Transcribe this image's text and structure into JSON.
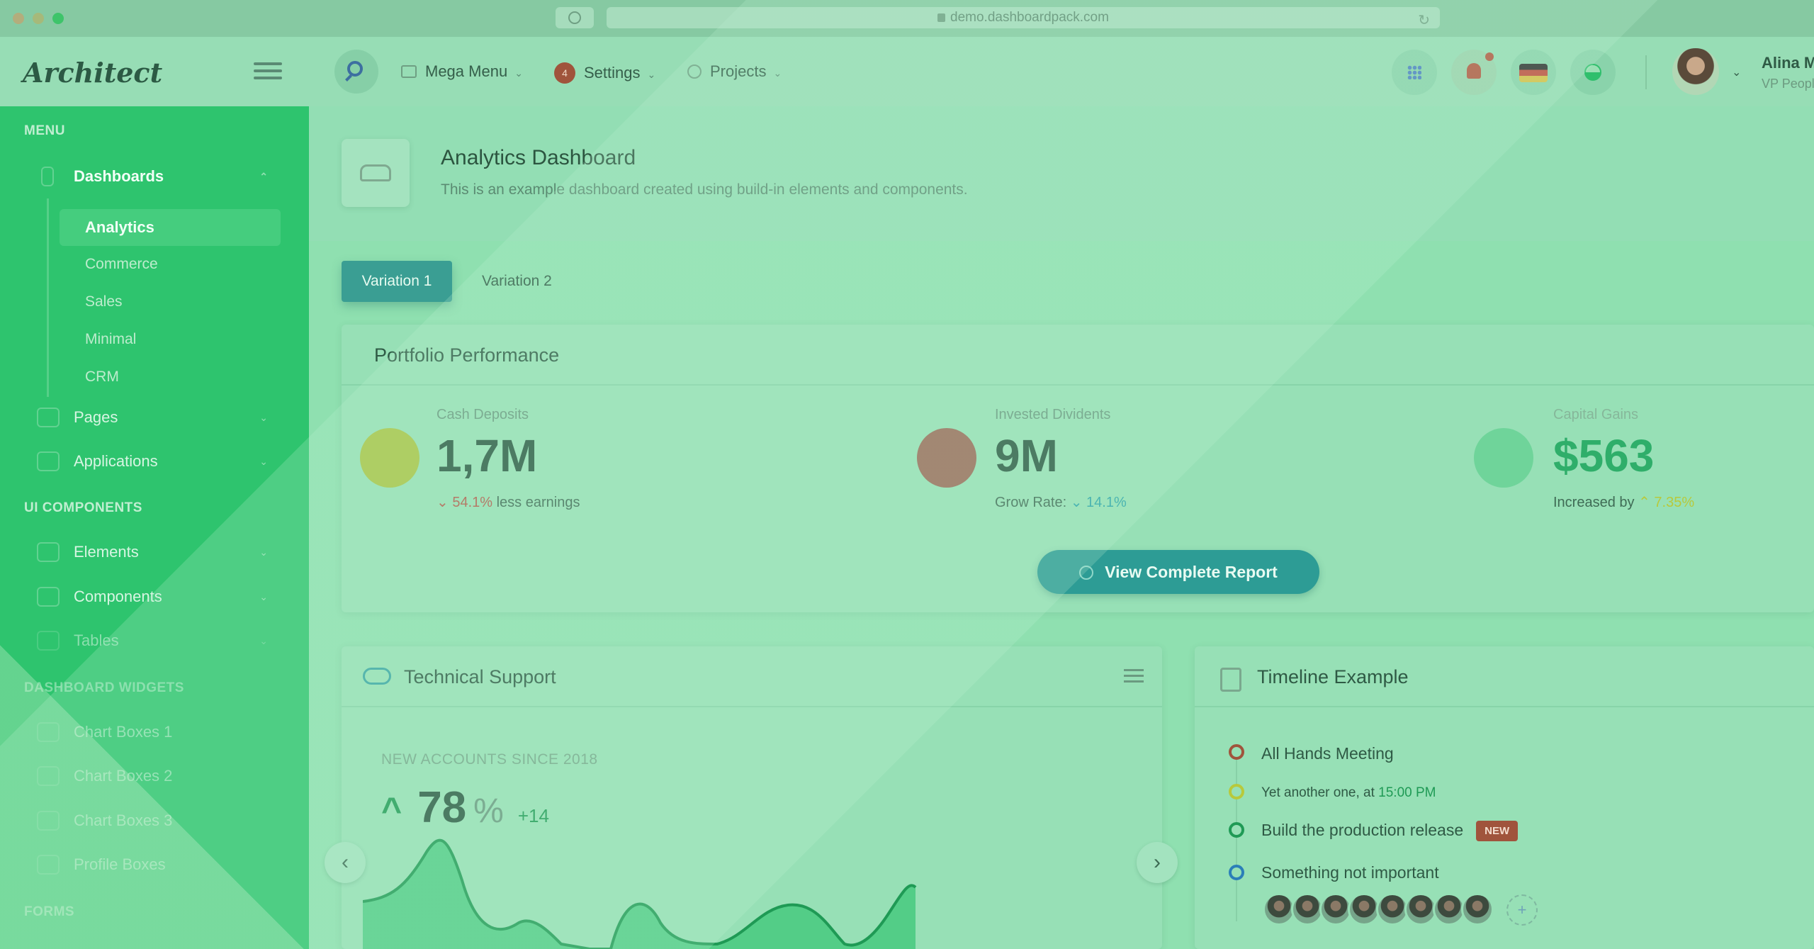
{
  "browser": {
    "url": "demo.dashboardpack.com"
  },
  "header": {
    "brand": "Architect",
    "nav": [
      {
        "label": "Mega Menu"
      },
      {
        "label": "Settings",
        "badge": "4"
      },
      {
        "label": "Projects"
      }
    ],
    "user": {
      "name": "Alina Mclourd",
      "role": "VP People Manager"
    },
    "colors": {
      "accent": "#2d9c95",
      "sidebar": "#2ec46e",
      "badge": "#a0543c"
    }
  },
  "sidebar": {
    "sections": [
      {
        "heading": "MENU"
      },
      {
        "heading": "UI COMPONENTS"
      },
      {
        "heading": "DASHBOARD WIDGETS"
      },
      {
        "heading": "FORMS"
      }
    ],
    "dashboards": {
      "label": "Dashboards",
      "children": [
        "Analytics",
        "Commerce",
        "Sales",
        "Minimal",
        "CRM"
      ]
    },
    "items": {
      "pages": "Pages",
      "applications": "Applications",
      "elements": "Elements",
      "components": "Components",
      "tables": "Tables",
      "chart_boxes_1": "Chart Boxes 1",
      "chart_boxes_2": "Chart Boxes 2",
      "chart_boxes_3": "Chart Boxes 3",
      "profile_boxes": "Profile Boxes"
    }
  },
  "page": {
    "title": "Analytics Dashboard",
    "subtitle": "This is an example dashboard created using build-in elements and components.",
    "tabs": [
      "Variation 1",
      "Variation 2"
    ]
  },
  "portfolio": {
    "title": "Portfolio Performance",
    "stats": [
      {
        "label": "Cash Deposits",
        "value": "1,7M",
        "arrow": "⌄",
        "change": "54.1%",
        "suffix": "less earnings"
      },
      {
        "label": "Invested Dividents",
        "value": "9M",
        "prefix": "Grow Rate:",
        "arrow": "⌄",
        "change": "14.1%"
      },
      {
        "label": "Capital Gains",
        "value": "$563",
        "prefix": "Increased by",
        "arrow": "⌃",
        "change": "7.35%"
      }
    ],
    "button": "View Complete Report"
  },
  "support": {
    "title": "Technical Support",
    "accounts_label": "NEW ACCOUNTS SINCE 2018",
    "accounts_value": "78",
    "accounts_unit": "%",
    "accounts_delta": "+14"
  },
  "timeline": {
    "title": "Timeline Example",
    "events": [
      {
        "text": "All Hands Meeting"
      },
      {
        "text": "Yet another one, at",
        "time": "15:00 PM"
      },
      {
        "text": "Build the production release",
        "badge": "NEW"
      },
      {
        "text": "Something not important"
      }
    ]
  }
}
